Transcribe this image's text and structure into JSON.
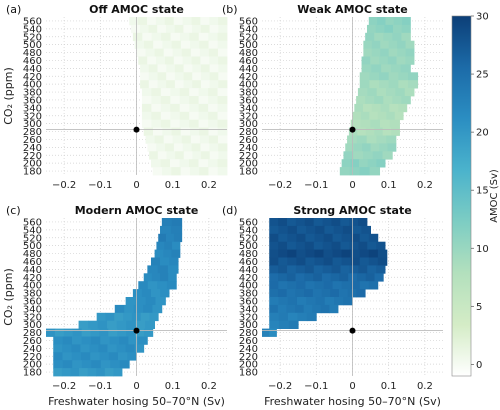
{
  "colormap": [
    "#ffffff",
    "#d4ecc6",
    "#b3e0bd",
    "#7dcdc3",
    "#4bb3cc",
    "#2b8ec2",
    "#1c6ba8",
    "#0c3f78"
  ],
  "chart_data": [
    {
      "type": "heatmap",
      "label": "(a)",
      "title": "Off AMOC state",
      "x_ticks": [
        -0.2,
        -0.1,
        0,
        0.1,
        0.2
      ],
      "y_ticks": [
        180,
        200,
        220,
        240,
        260,
        280,
        300,
        320,
        340,
        360,
        380,
        400,
        420,
        440,
        460,
        480,
        500,
        520,
        540,
        560
      ],
      "xlim": [
        -0.25,
        0.25
      ],
      "ylim": [
        170,
        570
      ],
      "ylabel": "CO₂ (ppm)",
      "marker": {
        "x": 0,
        "y": 285
      },
      "rows": [
        {
          "co2": 560,
          "x_start": -0.02,
          "x_end": 0.25,
          "value": 0.5
        },
        {
          "co2": 540,
          "x_start": -0.015,
          "x_end": 0.25,
          "value": 0.5
        },
        {
          "co2": 520,
          "x_start": -0.01,
          "x_end": 0.25,
          "value": 0.5
        },
        {
          "co2": 500,
          "x_start": -0.005,
          "x_end": 0.25,
          "value": 0.5
        },
        {
          "co2": 480,
          "x_start": 0.0,
          "x_end": 0.25,
          "value": 0.5
        },
        {
          "co2": 460,
          "x_start": 0.005,
          "x_end": 0.25,
          "value": 0.5
        },
        {
          "co2": 440,
          "x_start": 0.01,
          "x_end": 0.25,
          "value": 0.5
        },
        {
          "co2": 420,
          "x_start": 0.01,
          "x_end": 0.25,
          "value": 0.5
        },
        {
          "co2": 400,
          "x_start": 0.01,
          "x_end": 0.25,
          "value": 0.5
        },
        {
          "co2": 380,
          "x_start": 0.015,
          "x_end": 0.25,
          "value": 0.5
        },
        {
          "co2": 360,
          "x_start": 0.015,
          "x_end": 0.25,
          "value": 0.5
        },
        {
          "co2": 340,
          "x_start": 0.015,
          "x_end": 0.25,
          "value": 0.5
        },
        {
          "co2": 320,
          "x_start": 0.015,
          "x_end": 0.25,
          "value": 0.5
        },
        {
          "co2": 300,
          "x_start": 0.015,
          "x_end": 0.25,
          "value": 0.5
        },
        {
          "co2": 280,
          "x_start": 0.02,
          "x_end": 0.25,
          "value": 0.5
        },
        {
          "co2": 260,
          "x_start": 0.025,
          "x_end": 0.25,
          "value": 0.5
        },
        {
          "co2": 240,
          "x_start": 0.03,
          "x_end": 0.25,
          "value": 0.5
        },
        {
          "co2": 220,
          "x_start": 0.035,
          "x_end": 0.25,
          "value": 0.5
        },
        {
          "co2": 200,
          "x_start": 0.04,
          "x_end": 0.25,
          "value": 0.5
        },
        {
          "co2": 180,
          "x_start": 0.045,
          "x_end": 0.25,
          "value": 0.5
        }
      ]
    },
    {
      "type": "heatmap",
      "label": "(b)",
      "title": "Weak AMOC state",
      "x_ticks": [
        -0.2,
        -0.1,
        0,
        0.1,
        0.2
      ],
      "y_ticks": [
        180,
        200,
        220,
        240,
        260,
        280,
        300,
        320,
        340,
        360,
        380,
        400,
        420,
        440,
        460,
        480,
        500,
        520,
        540,
        560
      ],
      "xlim": [
        -0.25,
        0.25
      ],
      "ylim": [
        170,
        570
      ],
      "marker": {
        "x": 0,
        "y": 285
      },
      "rows": [
        {
          "co2": 560,
          "x_start": 0.045,
          "x_end": 0.16,
          "value": 11
        },
        {
          "co2": 540,
          "x_start": 0.04,
          "x_end": 0.16,
          "value": 11
        },
        {
          "co2": 520,
          "x_start": 0.035,
          "x_end": 0.16,
          "value": 10
        },
        {
          "co2": 500,
          "x_start": 0.03,
          "x_end": 0.17,
          "value": 10
        },
        {
          "co2": 480,
          "x_start": 0.03,
          "x_end": 0.17,
          "value": 10
        },
        {
          "co2": 460,
          "x_start": 0.025,
          "x_end": 0.17,
          "value": 10
        },
        {
          "co2": 440,
          "x_start": 0.025,
          "x_end": 0.16,
          "value": 10
        },
        {
          "co2": 420,
          "x_start": 0.02,
          "x_end": 0.18,
          "value": 10
        },
        {
          "co2": 400,
          "x_start": 0.02,
          "x_end": 0.18,
          "value": 9
        },
        {
          "co2": 380,
          "x_start": 0.015,
          "x_end": 0.17,
          "value": 9
        },
        {
          "co2": 360,
          "x_start": 0.01,
          "x_end": 0.16,
          "value": 9
        },
        {
          "co2": 340,
          "x_start": 0.005,
          "x_end": 0.15,
          "value": 8
        },
        {
          "co2": 320,
          "x_start": 0.0,
          "x_end": 0.14,
          "value": 8
        },
        {
          "co2": 300,
          "x_start": -0.005,
          "x_end": 0.13,
          "value": 8
        },
        {
          "co2": 280,
          "x_start": -0.01,
          "x_end": 0.13,
          "value": 8
        },
        {
          "co2": 260,
          "x_start": -0.015,
          "x_end": 0.12,
          "value": 9
        },
        {
          "co2": 240,
          "x_start": -0.02,
          "x_end": 0.12,
          "value": 10
        },
        {
          "co2": 220,
          "x_start": -0.025,
          "x_end": 0.11,
          "value": 10
        },
        {
          "co2": 200,
          "x_start": -0.03,
          "x_end": 0.09,
          "value": 11
        },
        {
          "co2": 180,
          "x_start": -0.035,
          "x_end": 0.075,
          "value": 11
        }
      ]
    },
    {
      "type": "heatmap",
      "label": "(c)",
      "title": "Modern AMOC state",
      "x_ticks": [
        -0.2,
        -0.1,
        0,
        0.1,
        0.2
      ],
      "y_ticks": [
        180,
        200,
        220,
        240,
        260,
        280,
        300,
        320,
        340,
        360,
        380,
        400,
        420,
        440,
        460,
        480,
        500,
        520,
        540,
        560
      ],
      "xlim": [
        -0.25,
        0.25
      ],
      "ylim": [
        170,
        570
      ],
      "ylabel": "CO₂ (ppm)",
      "xlabel": "Freshwater hosing 50–70°N (Sv)",
      "marker": {
        "x": 0,
        "y": 285
      },
      "rows": [
        {
          "co2": 560,
          "x_start": 0.07,
          "x_end": 0.125,
          "value": 23
        },
        {
          "co2": 540,
          "x_start": 0.065,
          "x_end": 0.125,
          "value": 23
        },
        {
          "co2": 520,
          "x_start": 0.06,
          "x_end": 0.125,
          "value": 23
        },
        {
          "co2": 500,
          "x_start": 0.055,
          "x_end": 0.12,
          "value": 22
        },
        {
          "co2": 480,
          "x_start": 0.05,
          "x_end": 0.12,
          "value": 22
        },
        {
          "co2": 460,
          "x_start": 0.04,
          "x_end": 0.115,
          "value": 22
        },
        {
          "co2": 440,
          "x_start": 0.03,
          "x_end": 0.115,
          "value": 22
        },
        {
          "co2": 420,
          "x_start": 0.02,
          "x_end": 0.11,
          "value": 22
        },
        {
          "co2": 400,
          "x_start": 0.005,
          "x_end": 0.11,
          "value": 21
        },
        {
          "co2": 380,
          "x_start": -0.01,
          "x_end": 0.09,
          "value": 21
        },
        {
          "co2": 360,
          "x_start": -0.03,
          "x_end": 0.08,
          "value": 21
        },
        {
          "co2": 340,
          "x_start": -0.06,
          "x_end": 0.07,
          "value": 21
        },
        {
          "co2": 320,
          "x_start": -0.11,
          "x_end": 0.06,
          "value": 20
        },
        {
          "co2": 300,
          "x_start": -0.16,
          "x_end": 0.05,
          "value": 20
        },
        {
          "co2": 280,
          "x_start": -0.25,
          "x_end": 0.045,
          "value": 20
        },
        {
          "co2": 260,
          "x_start": -0.23,
          "x_end": 0.03,
          "value": 21
        },
        {
          "co2": 240,
          "x_start": -0.23,
          "x_end": 0.02,
          "value": 21
        },
        {
          "co2": 220,
          "x_start": -0.23,
          "x_end": 0.0,
          "value": 21
        },
        {
          "co2": 200,
          "x_start": -0.23,
          "x_end": -0.02,
          "value": 21
        },
        {
          "co2": 180,
          "x_start": -0.23,
          "x_end": -0.04,
          "value": 20
        }
      ]
    },
    {
      "type": "heatmap",
      "label": "(d)",
      "title": "Strong AMOC state",
      "x_ticks": [
        -0.2,
        -0.1,
        0,
        0.1,
        0.2
      ],
      "y_ticks": [
        180,
        200,
        220,
        240,
        260,
        280,
        300,
        320,
        340,
        360,
        380,
        400,
        420,
        440,
        460,
        480,
        500,
        520,
        540,
        560
      ],
      "xlim": [
        -0.25,
        0.25
      ],
      "ylim": [
        170,
        570
      ],
      "xlabel": "Freshwater hosing 50–70°N (Sv)",
      "marker": {
        "x": 0,
        "y": 285
      },
      "rows": [
        {
          "co2": 560,
          "x_start": -0.23,
          "x_end": 0.04,
          "value": 28
        },
        {
          "co2": 540,
          "x_start": -0.23,
          "x_end": 0.05,
          "value": 28
        },
        {
          "co2": 520,
          "x_start": -0.23,
          "x_end": 0.07,
          "value": 28
        },
        {
          "co2": 500,
          "x_start": -0.23,
          "x_end": 0.09,
          "value": 28
        },
        {
          "co2": 480,
          "x_start": -0.23,
          "x_end": 0.095,
          "value": 29
        },
        {
          "co2": 460,
          "x_start": -0.23,
          "x_end": 0.095,
          "value": 28
        },
        {
          "co2": 440,
          "x_start": -0.23,
          "x_end": 0.09,
          "value": 27
        },
        {
          "co2": 420,
          "x_start": -0.23,
          "x_end": 0.085,
          "value": 26
        },
        {
          "co2": 400,
          "x_start": -0.23,
          "x_end": 0.07,
          "value": 25
        },
        {
          "co2": 380,
          "x_start": -0.23,
          "x_end": 0.035,
          "value": 25
        },
        {
          "co2": 360,
          "x_start": -0.23,
          "x_end": 0.0,
          "value": 24
        },
        {
          "co2": 340,
          "x_start": -0.23,
          "x_end": -0.04,
          "value": 24
        },
        {
          "co2": 320,
          "x_start": -0.23,
          "x_end": -0.1,
          "value": 23
        },
        {
          "co2": 300,
          "x_start": -0.23,
          "x_end": -0.15,
          "value": 23
        },
        {
          "co2": 280,
          "x_start": -0.25,
          "x_end": -0.21,
          "value": 22
        }
      ]
    }
  ],
  "colorbar": {
    "label": "AMOC (Sv)",
    "ticks": [
      0,
      5,
      10,
      15,
      20,
      25,
      30
    ],
    "range": [
      -1,
      30
    ]
  }
}
